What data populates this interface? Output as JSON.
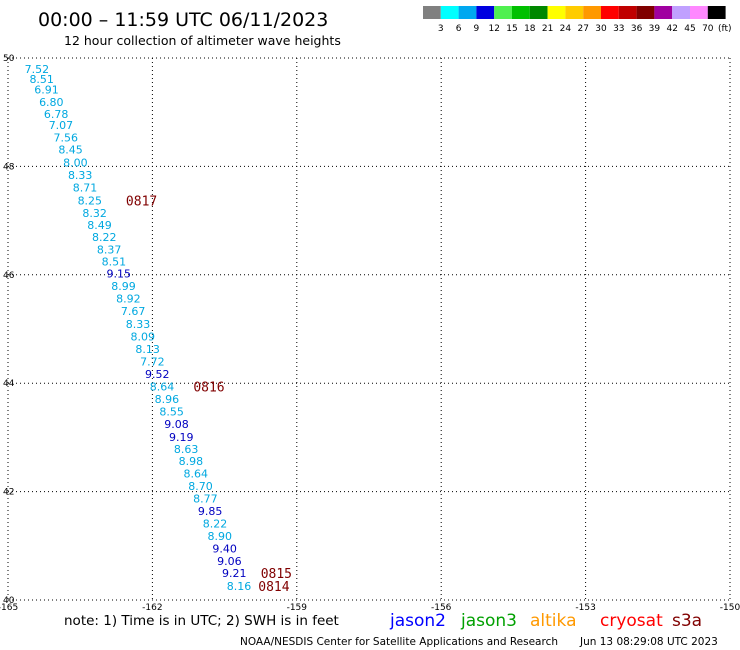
{
  "header": {
    "title": "00:00 – 11:59 UTC 06/11/2023",
    "subtitle": "12 hour collection of altimeter wave heights"
  },
  "colorbar": {
    "unit": "(ft)",
    "bins": [
      {
        "color": "#808080",
        "label": "3"
      },
      {
        "color": "#00ffff",
        "label": "6"
      },
      {
        "color": "#00a8f0",
        "label": "9"
      },
      {
        "color": "#0000e0",
        "label": "12"
      },
      {
        "color": "#50f050",
        "label": "15"
      },
      {
        "color": "#00c000",
        "label": "18"
      },
      {
        "color": "#008800",
        "label": "21"
      },
      {
        "color": "#ffff00",
        "label": "24"
      },
      {
        "color": "#ffcc00",
        "label": "27"
      },
      {
        "color": "#ff9900",
        "label": "30"
      },
      {
        "color": "#ff0000",
        "label": "33"
      },
      {
        "color": "#c00000",
        "label": "36"
      },
      {
        "color": "#800000",
        "label": "39"
      },
      {
        "color": "#a000a0",
        "label": "42"
      },
      {
        "color": "#c0a0ff",
        "label": "45"
      },
      {
        "color": "#ff88ff",
        "label": "70"
      },
      {
        "color": "#000000",
        "label": ""
      }
    ]
  },
  "map": {
    "lon_range": [
      -165,
      -150
    ],
    "lat_range": [
      40,
      50
    ],
    "x_ticks": [
      "-165",
      "-162",
      "-159",
      "-156",
      "-153",
      "-150"
    ],
    "y_ticks": [
      "50",
      "48",
      "46",
      "44",
      "42",
      "40"
    ],
    "grid": true
  },
  "colors": {
    "jason3": "#00a8e0",
    "altika": "#0000c0",
    "pass_label": "#800000"
  },
  "measurements": [
    {
      "lat": 49.8,
      "lon": -164.4,
      "swh": "7.52",
      "sat": "jason3"
    },
    {
      "lat": 49.61,
      "lon": -164.3,
      "swh": "8.51",
      "sat": "jason3"
    },
    {
      "lat": 49.42,
      "lon": -164.2,
      "swh": "6.91",
      "sat": "jason3"
    },
    {
      "lat": 49.19,
      "lon": -164.1,
      "swh": "6.80",
      "sat": "jason3"
    },
    {
      "lat": 48.97,
      "lon": -164.0,
      "swh": "6.78",
      "sat": "jason3"
    },
    {
      "lat": 48.76,
      "lon": -163.9,
      "swh": "7.07",
      "sat": "jason3"
    },
    {
      "lat": 48.53,
      "lon": -163.8,
      "swh": "7.56",
      "sat": "jason3"
    },
    {
      "lat": 48.31,
      "lon": -163.7,
      "swh": "8.45",
      "sat": "jason3"
    },
    {
      "lat": 48.07,
      "lon": -163.6,
      "swh": "8.00",
      "sat": "jason3"
    },
    {
      "lat": 47.84,
      "lon": -163.5,
      "swh": "8.33",
      "sat": "jason3"
    },
    {
      "lat": 47.61,
      "lon": -163.4,
      "swh": "8.71",
      "sat": "jason3"
    },
    {
      "lat": 47.37,
      "lon": -163.3,
      "swh": "8.25",
      "sat": "jason3"
    },
    {
      "lat": 47.14,
      "lon": -163.2,
      "swh": "8.32",
      "sat": "jason3"
    },
    {
      "lat": 46.92,
      "lon": -163.1,
      "swh": "8.49",
      "sat": "jason3"
    },
    {
      "lat": 46.7,
      "lon": -163.0,
      "swh": "8.22",
      "sat": "jason3"
    },
    {
      "lat": 46.47,
      "lon": -162.9,
      "swh": "8.37",
      "sat": "jason3"
    },
    {
      "lat": 46.25,
      "lon": -162.8,
      "swh": "8.51",
      "sat": "jason3"
    },
    {
      "lat": 46.02,
      "lon": -162.7,
      "swh": "9.15",
      "sat": "altika"
    },
    {
      "lat": 45.79,
      "lon": -162.6,
      "swh": "8.99",
      "sat": "jason3"
    },
    {
      "lat": 45.56,
      "lon": -162.5,
      "swh": "8.92",
      "sat": "jason3"
    },
    {
      "lat": 45.33,
      "lon": -162.4,
      "swh": "7.67",
      "sat": "jason3"
    },
    {
      "lat": 45.09,
      "lon": -162.3,
      "swh": "8.33",
      "sat": "jason3"
    },
    {
      "lat": 44.86,
      "lon": -162.2,
      "swh": "8.09",
      "sat": "jason3"
    },
    {
      "lat": 44.63,
      "lon": -162.1,
      "swh": "8.13",
      "sat": "jason3"
    },
    {
      "lat": 44.4,
      "lon": -162.0,
      "swh": "7.72",
      "sat": "jason3"
    },
    {
      "lat": 44.17,
      "lon": -161.9,
      "swh": "9.52",
      "sat": "altika"
    },
    {
      "lat": 43.94,
      "lon": -161.8,
      "swh": "8.64",
      "sat": "jason3"
    },
    {
      "lat": 43.71,
      "lon": -161.7,
      "swh": "8.96",
      "sat": "jason3"
    },
    {
      "lat": 43.48,
      "lon": -161.6,
      "swh": "8.55",
      "sat": "jason3"
    },
    {
      "lat": 43.25,
      "lon": -161.5,
      "swh": "9.08",
      "sat": "altika"
    },
    {
      "lat": 43.01,
      "lon": -161.4,
      "swh": "9.19",
      "sat": "altika"
    },
    {
      "lat": 42.79,
      "lon": -161.3,
      "swh": "8.63",
      "sat": "jason3"
    },
    {
      "lat": 42.56,
      "lon": -161.2,
      "swh": "8.98",
      "sat": "jason3"
    },
    {
      "lat": 42.33,
      "lon": -161.1,
      "swh": "8.64",
      "sat": "jason3"
    },
    {
      "lat": 42.1,
      "lon": -161.0,
      "swh": "8.70",
      "sat": "jason3"
    },
    {
      "lat": 41.87,
      "lon": -160.9,
      "swh": "8.77",
      "sat": "jason3"
    },
    {
      "lat": 41.64,
      "lon": -160.8,
      "swh": "9.85",
      "sat": "altika"
    },
    {
      "lat": 41.41,
      "lon": -160.7,
      "swh": "8.22",
      "sat": "jason3"
    },
    {
      "lat": 41.18,
      "lon": -160.6,
      "swh": "8.90",
      "sat": "jason3"
    },
    {
      "lat": 40.95,
      "lon": -160.5,
      "swh": "9.40",
      "sat": "altika"
    },
    {
      "lat": 40.72,
      "lon": -160.4,
      "swh": "9.06",
      "sat": "altika"
    },
    {
      "lat": 40.5,
      "lon": -160.3,
      "swh": "9.21",
      "sat": "altika"
    },
    {
      "lat": 40.26,
      "lon": -160.2,
      "swh": "8.16",
      "sat": "jason3"
    }
  ],
  "pass_labels": [
    {
      "lat": 47.37,
      "lon": -162.55,
      "text": "0817"
    },
    {
      "lat": 43.94,
      "lon": -161.15,
      "text": "0816"
    },
    {
      "lat": 40.5,
      "lon": -159.75,
      "text": "0815"
    },
    {
      "lat": 40.26,
      "lon": -159.8,
      "text": "0814"
    }
  ],
  "footer": {
    "note": "note: 1) Time is in UTC; 2) SWH is in feet",
    "satellites": [
      {
        "name": "jason2",
        "color": "#0000ff"
      },
      {
        "name": "jason3",
        "color": "#00a000"
      },
      {
        "name": "altika",
        "color": "#ff9900"
      },
      {
        "name": "cryosat",
        "color": "#ff0000"
      },
      {
        "name": "s3a",
        "color": "#800000"
      }
    ],
    "credit": "NOAA/NESDIS Center for Satellite Applications and Research",
    "generated": "Jun 13 08:29:08 UTC 2023"
  }
}
